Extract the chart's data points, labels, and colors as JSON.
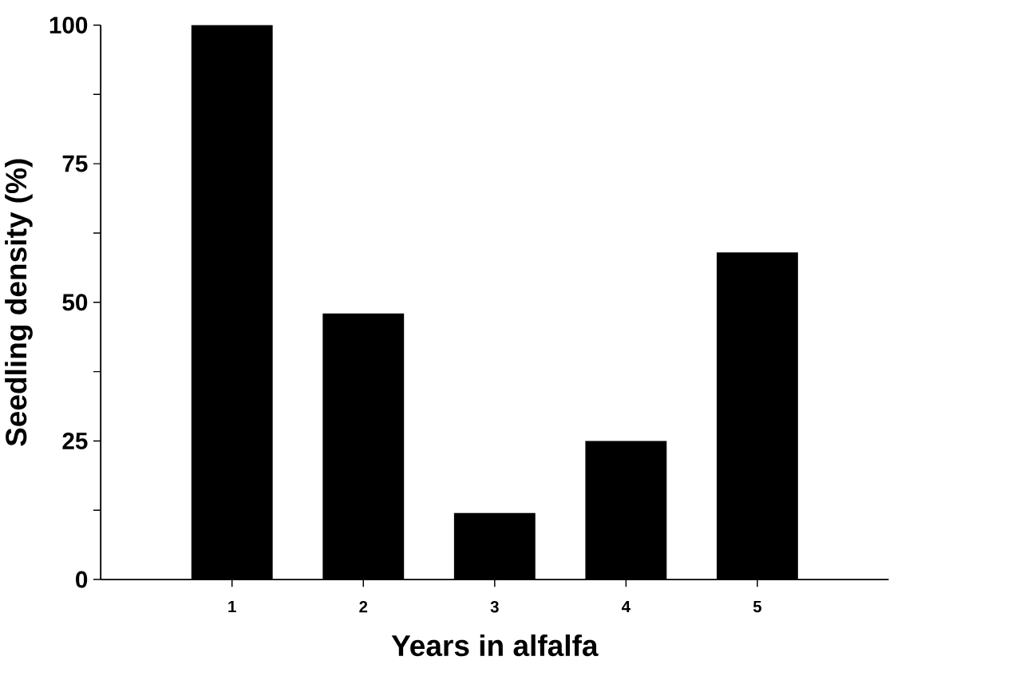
{
  "chart_data": {
    "type": "bar",
    "xlabel": "Years in alfalfa",
    "ylabel": "Seedling density (%)",
    "categories": [
      "1",
      "2",
      "3",
      "4",
      "5"
    ],
    "values": [
      100,
      48,
      12,
      25,
      59
    ],
    "color": "#000000",
    "ylim": [
      0,
      100
    ],
    "yticks": [
      0,
      {
        "value": 12.5,
        "label": null
      },
      25,
      {
        "value": 37.5,
        "label": null
      },
      50,
      {
        "value": 62.5,
        "label": null
      },
      75,
      {
        "value": 87.5,
        "label": null
      },
      100
    ],
    "grid": false
  }
}
